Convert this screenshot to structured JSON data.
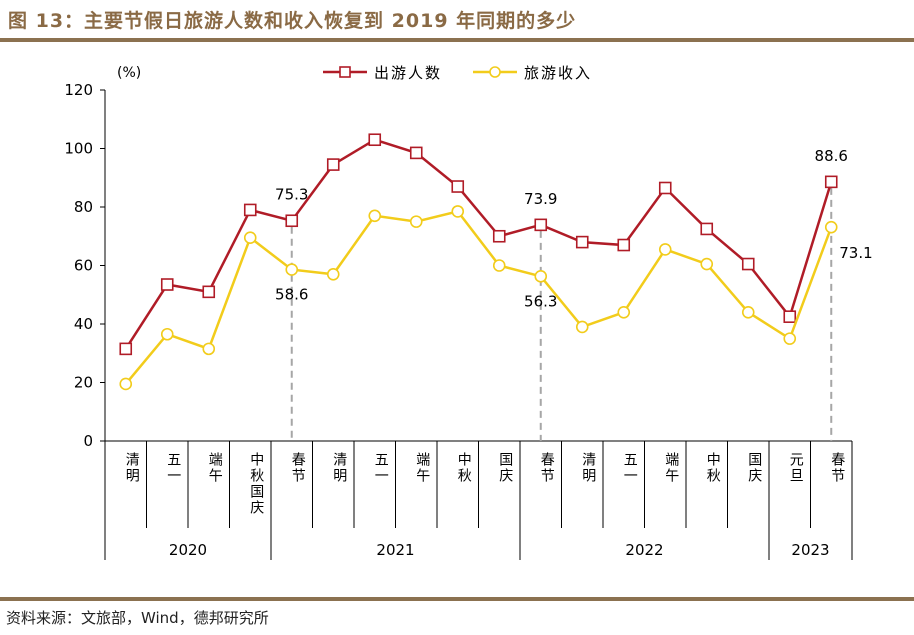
{
  "title": "图 13：主要节假日旅游人数和收入恢复到 2019 年同期的多少",
  "source": "资料来源：文旅部，Wind，德邦研究所",
  "chart_data": {
    "type": "line",
    "ylabel": "(%)",
    "ylim": [
      0,
      120
    ],
    "yticks": [
      0,
      20,
      40,
      60,
      80,
      100,
      120
    ],
    "categories": [
      "清明",
      "五一",
      "端午",
      "中秋国庆",
      "春节",
      "清明",
      "五一",
      "端午",
      "中秋",
      "国庆",
      "春节",
      "清明",
      "五一",
      "端午",
      "中秋",
      "国庆",
      "元旦",
      "春节"
    ],
    "groups": [
      {
        "label": "2020",
        "start": 0,
        "end": 3
      },
      {
        "label": "2021",
        "start": 4,
        "end": 9
      },
      {
        "label": "2022",
        "start": 10,
        "end": 15
      },
      {
        "label": "2023",
        "start": 16,
        "end": 17
      }
    ],
    "series": [
      {
        "name": "出游人数",
        "color": "#b01c27",
        "marker": "square",
        "values": [
          31.5,
          53.5,
          51,
          79,
          75.3,
          94.5,
          103,
          98.5,
          87,
          70,
          73.9,
          68,
          67,
          86.5,
          72.5,
          60.5,
          42.5,
          88.6
        ]
      },
      {
        "name": "旅游收入",
        "color": "#f2cc1b",
        "marker": "circle",
        "values": [
          19.5,
          36.5,
          31.5,
          69.5,
          58.6,
          57,
          77,
          75,
          78.5,
          60,
          56.3,
          39,
          44,
          65.5,
          60.5,
          44,
          35,
          73.1
        ]
      }
    ],
    "annotations": [
      {
        "index": 4,
        "top": "75.3",
        "bottom": "58.6"
      },
      {
        "index": 10,
        "top": "73.9",
        "bottom": "56.3"
      },
      {
        "index": 17,
        "top": "88.6",
        "bottom": "73.1"
      }
    ],
    "legend": "top-right",
    "grid": false
  }
}
